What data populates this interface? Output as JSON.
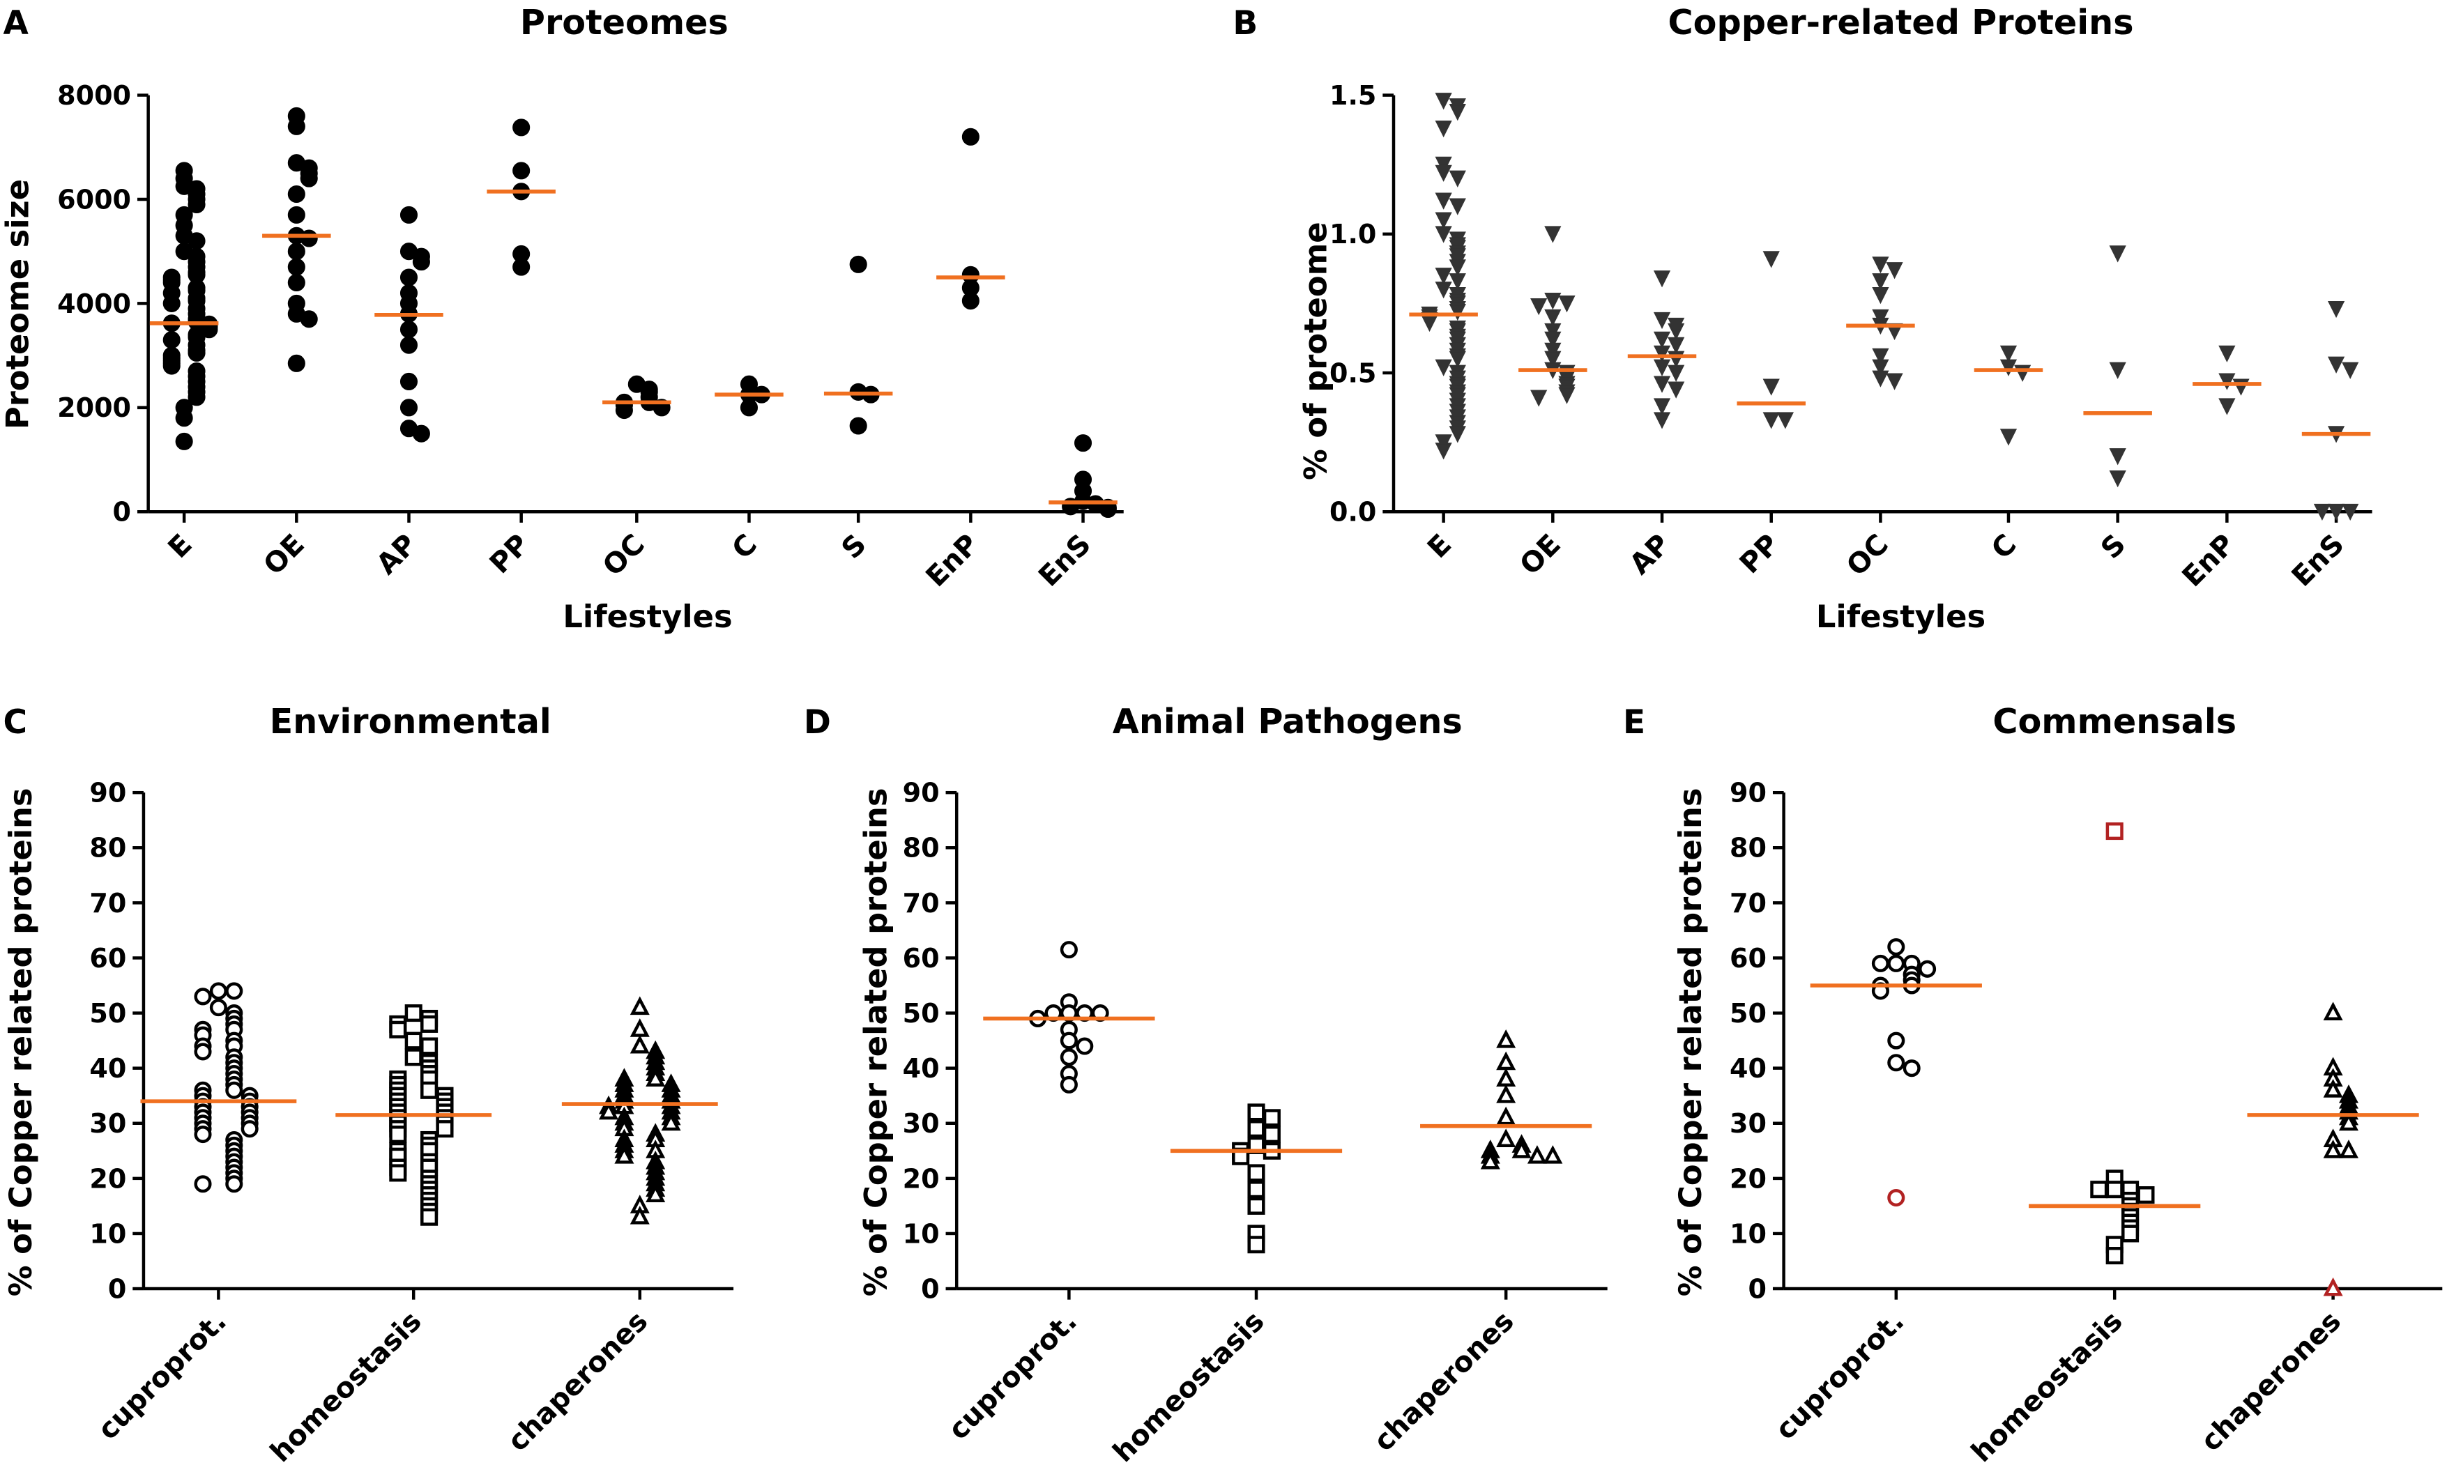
{
  "chart_data": [
    {
      "type": "strip",
      "panel": "A",
      "title": "Proteomes",
      "xlabel": "Lifestyles",
      "ylabel": "Proteome size",
      "marker_set": [
        "circle-filled"
      ],
      "color": "#000000",
      "median_color": "#f07020",
      "categories": [
        "E",
        "OE",
        "AP",
        "PP",
        "OC",
        "C",
        "S",
        "EnP",
        "EnS"
      ],
      "groups": [
        [
          6550,
          6400,
          6250,
          6200,
          6100,
          6000,
          5900,
          5700,
          5500,
          5300,
          5200,
          5000,
          4900,
          4800,
          4700,
          4600,
          4550,
          4500,
          4450,
          4400,
          4300,
          4250,
          4200,
          4100,
          4050,
          4000,
          3900,
          3800,
          3700,
          3650,
          3620,
          3600,
          3550,
          3500,
          3400,
          3350,
          3300,
          3200,
          3100,
          3050,
          3000,
          2950,
          2900,
          2850,
          2800,
          2700,
          2600,
          2500,
          2400,
          2300,
          2200,
          2000,
          1800,
          1350
        ],
        [
          7600,
          7400,
          6700,
          6600,
          6500,
          6400,
          6100,
          5700,
          5300,
          5250,
          5000,
          4700,
          4400,
          4000,
          3800,
          3700,
          2850
        ],
        [
          5700,
          5000,
          4900,
          4800,
          4500,
          4200,
          4000,
          3800,
          3500,
          3200,
          2500,
          2000,
          1600,
          1500
        ],
        [
          7380,
          6550,
          6150,
          4950,
          4700
        ],
        [
          2450,
          2350,
          2300,
          2200,
          2100,
          2100,
          2050,
          2000,
          1950
        ],
        [
          2450,
          2250,
          2250,
          2000
        ],
        [
          4750,
          2300,
          2250,
          1650
        ],
        [
          7200,
          4550,
          4300,
          4050
        ],
        [
          1320,
          620,
          400,
          200,
          150,
          100,
          80,
          50
        ]
      ],
      "medians": [
        3620,
        5300,
        3780,
        6150,
        2100,
        2250,
        2270,
        4500,
        180
      ],
      "ylim": [
        0,
        8000
      ],
      "yticks": [
        0,
        2000,
        4000,
        6000,
        8000
      ]
    },
    {
      "type": "strip",
      "panel": "B",
      "title": "Copper-related Proteins",
      "xlabel": "Lifestyles",
      "ylabel": "% of proteome",
      "marker_set": [
        "triangle-down-filled"
      ],
      "color": "#333333",
      "median_color": "#f07020",
      "categories": [
        "E",
        "OE",
        "AP",
        "PP",
        "OC",
        "C",
        "S",
        "EnP",
        "EnS"
      ],
      "groups": [
        [
          1.48,
          1.46,
          1.44,
          1.38,
          1.25,
          1.22,
          1.2,
          1.12,
          1.1,
          1.05,
          1.0,
          0.98,
          0.96,
          0.95,
          0.93,
          0.92,
          0.9,
          0.88,
          0.85,
          0.83,
          0.8,
          0.78,
          0.76,
          0.75,
          0.73,
          0.72,
          0.71,
          0.7,
          0.69,
          0.68,
          0.66,
          0.65,
          0.63,
          0.62,
          0.6,
          0.58,
          0.56,
          0.55,
          0.52,
          0.5,
          0.48,
          0.46,
          0.45,
          0.43,
          0.42,
          0.4,
          0.38,
          0.36,
          0.34,
          0.32,
          0.3,
          0.28,
          0.25,
          0.22
        ],
        [
          1.0,
          0.76,
          0.75,
          0.74,
          0.7,
          0.65,
          0.62,
          0.58,
          0.55,
          0.51,
          0.5,
          0.48,
          0.46,
          0.45,
          0.43,
          0.42,
          0.41
        ],
        [
          0.84,
          0.69,
          0.67,
          0.65,
          0.62,
          0.6,
          0.57,
          0.55,
          0.52,
          0.5,
          0.46,
          0.44,
          0.38,
          0.33
        ],
        [
          0.91,
          0.45,
          0.33,
          0.33
        ],
        [
          0.89,
          0.87,
          0.83,
          0.78,
          0.7,
          0.67,
          0.65,
          0.56,
          0.52,
          0.48,
          0.47
        ],
        [
          0.57,
          0.52,
          0.5,
          0.27
        ],
        [
          0.93,
          0.51,
          0.2,
          0.12
        ],
        [
          0.57,
          0.47,
          0.45,
          0.38
        ],
        [
          0.73,
          0.53,
          0.51,
          0.28,
          0,
          0,
          0
        ]
      ],
      "medians": [
        0.71,
        0.51,
        0.56,
        0.39,
        0.67,
        0.51,
        0.355,
        0.46,
        0.28
      ],
      "ylim": [
        0,
        1.5
      ],
      "yticks": [
        {
          "value": 0,
          "label": "0.0"
        },
        0.5,
        {
          "value": 1,
          "label": "1.0"
        },
        1.5
      ]
    },
    {
      "type": "strip",
      "panel": "C",
      "title": "Environmental",
      "ylabel": "% of Copper related proteins",
      "marker_set": [
        "circle-open",
        "square-open",
        "triangle-open"
      ],
      "color": "#000000",
      "median_color": "#f07020",
      "categories": [
        "cuproprot.",
        "homeostasis",
        "chaperones"
      ],
      "groups": [
        [
          54,
          54,
          53,
          51,
          50,
          49,
          48,
          47,
          47,
          46,
          45,
          44,
          44,
          43,
          42,
          41,
          40,
          39,
          38,
          37,
          36,
          36,
          35,
          35,
          34,
          34,
          33,
          33,
          32,
          32,
          31,
          31,
          30,
          30,
          29,
          29,
          28,
          27,
          26,
          25,
          24,
          23,
          22,
          21,
          20,
          19,
          19
        ],
        [
          50,
          49,
          48,
          48,
          47,
          45,
          44,
          42,
          41,
          40,
          39,
          38,
          38,
          37,
          36,
          36,
          35,
          35,
          34,
          34,
          33,
          33,
          32,
          32,
          31,
          31,
          30,
          30,
          29,
          29,
          28,
          27,
          26,
          25,
          25,
          24,
          23,
          22,
          22,
          21,
          20,
          19,
          18,
          17,
          16,
          15,
          14,
          13
        ],
        [
          51,
          47,
          44,
          43,
          42,
          41,
          40,
          39,
          38,
          38,
          37,
          37,
          36,
          36,
          35,
          35,
          34,
          34,
          33,
          33,
          33,
          32,
          32,
          31,
          31,
          30,
          30,
          29,
          28,
          27,
          27,
          26,
          25,
          25,
          24,
          23,
          22,
          21,
          20,
          19,
          18,
          17,
          15,
          13
        ]
      ],
      "medians": [
        34,
        31.5,
        33.5
      ],
      "ylim": [
        0,
        90
      ],
      "yticks": [
        0,
        10,
        20,
        30,
        40,
        50,
        60,
        70,
        80,
        90
      ]
    },
    {
      "type": "strip",
      "panel": "D",
      "title": "Animal Pathogens",
      "ylabel": "% of Copper related proteins",
      "marker_set": [
        "circle-open",
        "square-open",
        "triangle-open"
      ],
      "color": "#000000",
      "median_color": "#f07020",
      "categories": [
        "cuproprot.",
        "homeostasis",
        "chaperones"
      ],
      "groups": [
        [
          61.5,
          52,
          50,
          50,
          50,
          50,
          49,
          47,
          45,
          44,
          42,
          39,
          37
        ],
        [
          32,
          31,
          29,
          28,
          26,
          25,
          25,
          24,
          21,
          18,
          15,
          10,
          8
        ],
        [
          45,
          41,
          38,
          35,
          31,
          27,
          26,
          25,
          25,
          24,
          24,
          23,
          24
        ]
      ],
      "medians": [
        49,
        25,
        29.5
      ],
      "ylim": [
        0,
        90
      ],
      "yticks": [
        0,
        10,
        20,
        30,
        40,
        50,
        60,
        70,
        80,
        90
      ]
    },
    {
      "type": "strip",
      "panel": "E",
      "title": "Commensals",
      "ylabel": "% of Copper related proteins",
      "marker_set": [
        "circle-open",
        "square-open",
        "triangle-open"
      ],
      "color": "#000000",
      "median_color": "#f07020",
      "outlier_color": "#b22222",
      "categories": [
        "cuproprot.",
        "homeostasis",
        "chaperones"
      ],
      "groups": [
        [
          62,
          59,
          59,
          59,
          58,
          57,
          56,
          55,
          55,
          54,
          45,
          41,
          40
        ],
        [
          20,
          18,
          18,
          18,
          17,
          16,
          15,
          14,
          13,
          12,
          11,
          10,
          8,
          6
        ],
        [
          50,
          40,
          38,
          36,
          35,
          34,
          33,
          32,
          31,
          30,
          27,
          25,
          25
        ]
      ],
      "outliers": [
        [
          16.5
        ],
        [
          83
        ],
        [
          0
        ]
      ],
      "medians": [
        55,
        15,
        31.5
      ],
      "ylim": [
        0,
        90
      ],
      "yticks": [
        0,
        10,
        20,
        30,
        40,
        50,
        60,
        70,
        80,
        90
      ]
    }
  ]
}
